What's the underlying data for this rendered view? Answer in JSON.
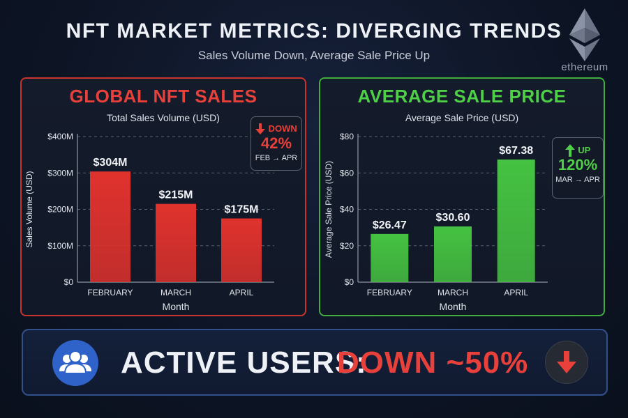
{
  "header": {
    "title": "NFT MARKET METRICS: DIVERGING TRENDS",
    "subtitle": "Sales Volume Down, Average Sale Price Up",
    "brand": "ethereum"
  },
  "colors": {
    "sales_accent": "#e8403a",
    "price_accent": "#4fcf47",
    "banner_border": "#31508c",
    "users_icon_bg": "#2f63c9"
  },
  "left_panel": {
    "title": "GLOBAL NFT SALES",
    "subtitle": "Total Sales Volume (USD)",
    "change": {
      "direction": "DOWN",
      "percent": "42%",
      "range": "FEB → APR",
      "icon": "down-arrow-icon"
    }
  },
  "right_panel": {
    "title": "AVERAGE SALE PRICE",
    "subtitle": "Average Sale Price (USD)",
    "change": {
      "direction": "UP",
      "percent": "120%",
      "range": "MAR → APR",
      "icon": "up-arrow-icon"
    }
  },
  "banner": {
    "label": "ACTIVE USERS:",
    "value": "DOWN ~50%",
    "icon_left": "users-icon",
    "icon_right": "down-arrow-icon"
  },
  "chart_data": [
    {
      "type": "bar",
      "categories": [
        "FEBRUARY",
        "MARCH",
        "APRIL"
      ],
      "values": [
        304,
        215,
        175
      ],
      "data_labels": [
        "$304M",
        "$215M",
        "$175M"
      ],
      "ylim": [
        0,
        400
      ],
      "yticks": [
        0,
        100,
        200,
        300,
        400
      ],
      "ytick_labels": [
        "$0",
        "$100M",
        "$200M",
        "$300M",
        "$400M"
      ],
      "xlabel": "Month",
      "ylabel": "Sales Volume (USD)",
      "grid": true,
      "color": "#e0322d"
    },
    {
      "type": "bar",
      "categories": [
        "FEBRUARY",
        "MARCH",
        "APRIL"
      ],
      "values": [
        26.47,
        30.6,
        67.38
      ],
      "data_labels": [
        "$26.47",
        "$30.60",
        "$67.38"
      ],
      "ylim": [
        0,
        80
      ],
      "yticks": [
        0,
        20,
        40,
        60,
        80
      ],
      "ytick_labels": [
        "$0",
        "$20",
        "$40",
        "$60",
        "$80"
      ],
      "xlabel": "Month",
      "ylabel": "Average Sale Price (USD)",
      "grid": true,
      "color": "#45c241"
    }
  ]
}
